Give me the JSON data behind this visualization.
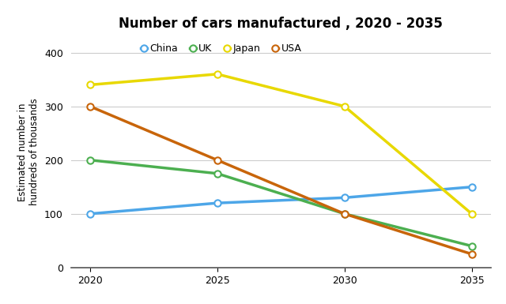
{
  "title": "Number of cars manufactured , 2020 - 2035",
  "ylabel": "Estimated number in\nhundreds of thousands",
  "x": [
    2020,
    2025,
    2030,
    2035
  ],
  "series": [
    {
      "label": "China",
      "values": [
        100,
        120,
        130,
        150
      ],
      "color": "#4da6e8",
      "marker": "o"
    },
    {
      "label": "UK",
      "values": [
        200,
        175,
        100,
        40
      ],
      "color": "#4caf50",
      "marker": "o"
    },
    {
      "label": "Japan",
      "values": [
        340,
        360,
        300,
        100
      ],
      "color": "#e8d800",
      "marker": "o"
    },
    {
      "label": "USA",
      "values": [
        300,
        200,
        100,
        25
      ],
      "color": "#c8650a",
      "marker": "o"
    }
  ],
  "ylim": [
    0,
    430
  ],
  "yticks": [
    0,
    100,
    200,
    300,
    400
  ],
  "xticks": [
    2020,
    2025,
    2030,
    2035
  ],
  "background_color": "#ffffff",
  "grid_color": "#cccccc",
  "title_fontsize": 12,
  "legend_fontsize": 9,
  "axis_label_fontsize": 8.5,
  "tick_fontsize": 9,
  "linewidth": 2.5,
  "markersize": 6
}
